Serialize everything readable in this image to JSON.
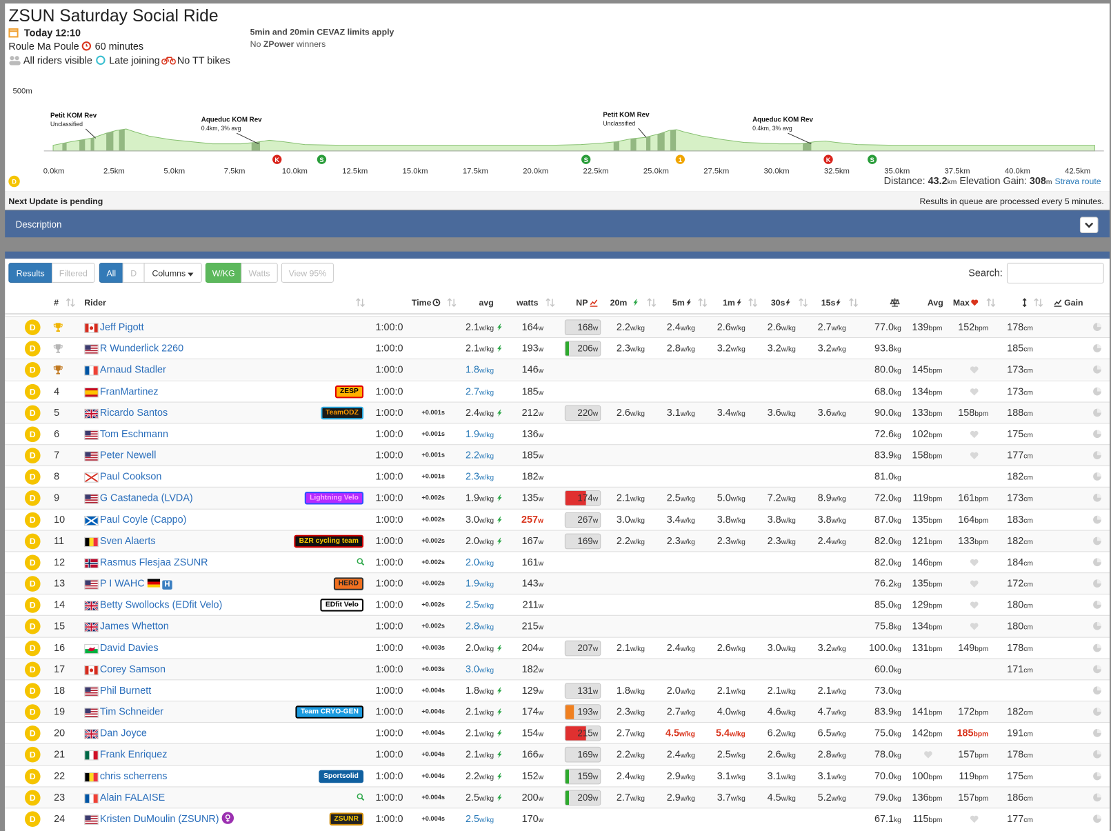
{
  "header": {
    "title": "ZSUN Saturday Social Ride",
    "date": "Today 12:10",
    "route": "Roule Ma Poule",
    "duration": "60 minutes",
    "visibility": "All riders visible",
    "late_join": "Late joining",
    "bikes": "No TT bikes",
    "note": "5min and 20min CEVAZ limits apply",
    "zpower": {
      "pre": "No ",
      "strong": "ZPower",
      "post": " winners"
    }
  },
  "profile": {
    "y_label": "500m",
    "segments": [
      {
        "name": "Petit KOM Rev",
        "detail": "Unclassified"
      },
      {
        "name": "Aqueduc KOM Rev",
        "detail": "0.4km, 3% avg"
      },
      {
        "name": "Petit KOM Rev",
        "detail": "Unclassified"
      },
      {
        "name": "Aqueduc KOM Rev",
        "detail": "0.4km, 3% avg"
      }
    ],
    "x_labels": [
      "0.0km",
      "2.5km",
      "5.0km",
      "7.5km",
      "10.0km",
      "12.5km",
      "15.0km",
      "17.5km",
      "20.0km",
      "22.5km",
      "25.0km",
      "27.5km",
      "30.0km",
      "32.5km",
      "35.0km",
      "37.5km",
      "40.0km",
      "42.5km"
    ],
    "markers": [
      {
        "text": "K",
        "color": "#d9241c"
      },
      {
        "text": "S",
        "color": "#2a9d3a"
      },
      {
        "text": "S",
        "color": "#2a9d3a"
      },
      {
        "text": "1",
        "color": "#f0a500"
      },
      {
        "text": "K",
        "color": "#d9241c"
      },
      {
        "text": "S",
        "color": "#2a9d3a"
      }
    ],
    "category": "D"
  },
  "distance": {
    "label": "Distance:",
    "value": "43.2",
    "unit": "km",
    "gain_label": "Elevation Gain:",
    "gain_value": "308",
    "gain_unit": "m",
    "link": "Strava route"
  },
  "status": {
    "left": "Next Update is pending",
    "right": "Results in queue are processed every 5 minutes."
  },
  "description": "Description",
  "toolbar": {
    "results": "Results",
    "filtered": "Filtered",
    "all": "All",
    "cat": "D",
    "columns": "Columns",
    "wkg": "W/KG",
    "watts": "Watts",
    "view": "View 95%",
    "search": "Search:"
  },
  "table": {
    "columns": {
      "pos": "#",
      "rider": "Rider",
      "time": "Time",
      "avg": "avg",
      "watts": "watts",
      "np": "NP",
      "w20": "20m",
      "w5": "5m",
      "w1": "1m",
      "w30": "30s",
      "w15": "15s",
      "hr_avg": "Avg",
      "hr_max": "Max",
      "gain": "Gain"
    },
    "units": {
      "wkg": "w/kg",
      "w": "w",
      "kg": "kg",
      "bpm": "bpm",
      "cm": "cm"
    },
    "rows": [
      {
        "cat": "D",
        "trophy": "#f0b400",
        "flag": "CA",
        "rider": "Jeff Pigott",
        "time": "1:00:0",
        "avg": "2.1",
        "pb": true,
        "watts": "164",
        "np": "168",
        "w20": "2.2",
        "w5": "2.4",
        "w1": "2.6",
        "w30": "2.6",
        "w15": "2.7",
        "weight": "77.0",
        "hr_avg": "139",
        "hr_max": "152",
        "height": "178"
      },
      {
        "cat": "D",
        "trophy": "#b5b5b5",
        "flag": "US",
        "rider": "R Wunderlick 2260",
        "time": "1:00:0",
        "avg": "2.1",
        "pb": true,
        "watts": "193",
        "np": "206",
        "np_bar": [
          "#2eaa2e",
          0.1
        ],
        "w20": "2.3",
        "w5": "2.8",
        "w1": "3.2",
        "w30": "3.2",
        "w15": "3.2",
        "weight": "93.8",
        "height": "185"
      },
      {
        "cat": "D",
        "trophy": "#c07820",
        "flag": "FR",
        "rider": "Arnaud Stadler",
        "time": "1:00:0",
        "avg": "1.8",
        "watts": "146",
        "weight": "80.0",
        "hr_avg": "145",
        "heart": [
          "hr_max"
        ],
        "height": "173"
      },
      {
        "cat": "D",
        "pos": 4,
        "flag": "ES",
        "rider": "FranMartinez",
        "team": {
          "text": "ZESP",
          "bg": "#ffb000",
          "fg": "#000",
          "border": "#e00000"
        },
        "time": "1:00:0",
        "avg": "2.7",
        "watts": "185",
        "weight": "68.0",
        "hr_avg": "134",
        "heart": [
          "hr_max"
        ],
        "height": "173"
      },
      {
        "cat": "D",
        "pos": 5,
        "flag": "GB",
        "rider": "Ricardo Santos",
        "team": {
          "text": "TeamODZ",
          "bg": "#1a1a1a",
          "fg": "#ff9900",
          "border": "#29a8e0"
        },
        "time": "1:00:0",
        "gap": "+0.001s",
        "avg": "2.4",
        "pb": true,
        "watts": "212",
        "np": "220",
        "w20": "2.6",
        "w5": "3.1",
        "w1": "3.4",
        "w30": "3.6",
        "w15": "3.6",
        "weight": "90.0",
        "hr_avg": "133",
        "hr_max": "158",
        "height": "188"
      },
      {
        "cat": "D",
        "pos": 6,
        "flag": "US",
        "rider": "Tom Eschmann",
        "time": "1:00:0",
        "gap": "+0.001s",
        "avg": "1.9",
        "watts": "136",
        "weight": "72.6",
        "hr_avg": "102",
        "heart": [
          "hr_max"
        ],
        "height": "175"
      },
      {
        "cat": "D",
        "pos": 7,
        "flag": "US",
        "rider": "Peter Newell",
        "time": "1:00:0",
        "gap": "+0.001s",
        "avg": "2.2",
        "watts": "185",
        "weight": "83.9",
        "hr_avg": "158",
        "heart": [
          "hr_max"
        ],
        "height": "177"
      },
      {
        "cat": "D",
        "pos": 8,
        "flag": "JE",
        "rider": "Paul Cookson",
        "time": "1:00:0",
        "gap": "+0.001s",
        "avg": "2.3",
        "watts": "182",
        "weight": "81.0",
        "height": "182"
      },
      {
        "cat": "D",
        "pos": 9,
        "flag": "US",
        "rider": "G Castaneda (LVDA)",
        "team": {
          "text": "Lightning Velo",
          "bg": "#b52cff",
          "fg": "#ffb3ff",
          "border": "#3050ff"
        },
        "time": "1:00:0",
        "gap": "+0.002s",
        "avg": "1.9",
        "pb": true,
        "watts": "135",
        "np": "174",
        "np_bar": [
          "#e03030",
          0.6
        ],
        "w20": "2.1",
        "w5": "2.5",
        "w1": "5.0",
        "w30": "7.2",
        "w15": "8.9",
        "weight": "72.0",
        "hr_avg": "119",
        "hr_max": "161",
        "height": "173"
      },
      {
        "cat": "D",
        "pos": 10,
        "flag": "SCT",
        "rider": "Paul Coyle (Cappo)",
        "time": "1:00:0",
        "gap": "+0.002s",
        "avg": "3.0",
        "pb": true,
        "watts": "257",
        "hot": [
          "watts"
        ],
        "np": "267",
        "w20": "3.0",
        "w5": "3.4",
        "w1": "3.8",
        "w30": "3.8",
        "w15": "3.8",
        "weight": "87.0",
        "hr_avg": "135",
        "hr_max": "164",
        "height": "183"
      },
      {
        "cat": "D",
        "pos": 11,
        "flag": "BE",
        "rider": "Sven Alaerts",
        "team": {
          "text": "BZR cycling team",
          "bg": "#111111",
          "fg": "#ffcc00",
          "border": "#cc0000"
        },
        "time": "1:00:0",
        "gap": "+0.002s",
        "avg": "2.0",
        "pb": true,
        "watts": "167",
        "np": "169",
        "w20": "2.2",
        "w5": "2.3",
        "w1": "2.3",
        "w30": "2.3",
        "w15": "2.4",
        "weight": "82.0",
        "hr_avg": "121",
        "hr_max": "133",
        "height": "182"
      },
      {
        "cat": "D",
        "pos": 12,
        "flag": "NO",
        "rider": "Rasmus Flesjaa ZSUNR",
        "search_icon": true,
        "time": "1:00:0",
        "gap": "+0.002s",
        "avg": "2.0",
        "watts": "161",
        "weight": "82.0",
        "hr_avg": "146",
        "heart": [
          "hr_max"
        ],
        "height": "184"
      },
      {
        "cat": "D",
        "pos": 13,
        "flag": "US",
        "rider": "P I WAHC",
        "flag2": "DE",
        "tag": "H",
        "team": {
          "text": "HERD",
          "bg": "#f07020",
          "fg": "#222222",
          "border": "#333333"
        },
        "time": "1:00:0",
        "gap": "+0.002s",
        "avg": "1.9",
        "watts": "143",
        "weight": "76.2",
        "hr_avg": "135",
        "heart": [
          "hr_max"
        ],
        "height": "172"
      },
      {
        "cat": "D",
        "pos": 14,
        "flag": "GB",
        "rider": "Betty Swollocks (EDfit Velo)",
        "team": {
          "text": "EDfit Velo",
          "bg": "#ffffff",
          "fg": "#000000",
          "border": "#000000"
        },
        "time": "1:00:0",
        "gap": "+0.002s",
        "avg": "2.5",
        "watts": "211",
        "weight": "85.0",
        "hr_avg": "129",
        "heart": [
          "hr_max"
        ],
        "height": "180"
      },
      {
        "cat": "D",
        "pos": 15,
        "flag": "GB",
        "rider": "James Whetton",
        "time": "1:00:0",
        "gap": "+0.002s",
        "avg": "2.8",
        "watts": "215",
        "weight": "75.8",
        "hr_avg": "134",
        "heart": [
          "hr_max"
        ],
        "height": "180"
      },
      {
        "cat": "D",
        "pos": 16,
        "flag": "WLS",
        "rider": "David Davies",
        "time": "1:00:0",
        "gap": "+0.003s",
        "avg": "2.0",
        "pb": true,
        "watts": "204",
        "np": "207",
        "w20": "2.1",
        "w5": "2.4",
        "w1": "2.6",
        "w30": "3.0",
        "w15": "3.2",
        "weight": "100.0",
        "hr_avg": "131",
        "hr_max": "149",
        "height": "178"
      },
      {
        "cat": "D",
        "pos": 17,
        "flag": "CA",
        "rider": "Corey Samson",
        "time": "1:00:0",
        "gap": "+0.003s",
        "avg": "3.0",
        "watts": "182",
        "weight": "60.0",
        "height": "171"
      },
      {
        "cat": "D",
        "pos": 18,
        "flag": "US",
        "rider": "Phil Burnett",
        "time": "1:00:0",
        "gap": "+0.004s",
        "avg": "1.8",
        "pb": true,
        "watts": "129",
        "np": "131",
        "w20": "1.8",
        "w5": "2.0",
        "w1": "2.1",
        "w30": "2.1",
        "w15": "2.1",
        "weight": "73.0"
      },
      {
        "cat": "D",
        "pos": 19,
        "flag": "US",
        "rider": "Tim Schneider",
        "team": {
          "text": "Team CRYO-GEN",
          "bg": "#1a9be0",
          "fg": "#ffffff",
          "border": "#000000"
        },
        "time": "1:00:0",
        "gap": "+0.004s",
        "avg": "2.1",
        "pb": true,
        "watts": "174",
        "np": "193",
        "np_bar": [
          "#f08020",
          0.25
        ],
        "w20": "2.3",
        "w5": "2.7",
        "w1": "4.0",
        "w30": "4.6",
        "w15": "4.7",
        "weight": "83.9",
        "hr_avg": "141",
        "hr_max": "172",
        "height": "182"
      },
      {
        "cat": "D",
        "pos": 20,
        "flag": "GB",
        "rider": "Dan Joyce",
        "time": "1:00:0",
        "gap": "+0.004s",
        "avg": "2.1",
        "pb": true,
        "watts": "154",
        "np": "215",
        "np_bar": [
          "#e03030",
          0.6
        ],
        "w20": "2.7",
        "w5": "4.5",
        "w1": "5.4",
        "w30": "6.2",
        "w15": "6.5",
        "hot": [
          "w5",
          "w1",
          "hr_max"
        ],
        "weight": "75.0",
        "hr_avg": "142",
        "hr_max": "185",
        "height": "191"
      },
      {
        "cat": "D",
        "pos": 21,
        "flag": "MX",
        "rider": "Frank Enriquez",
        "time": "1:00:0",
        "gap": "+0.004s",
        "avg": "2.1",
        "pb": true,
        "watts": "166",
        "np": "169",
        "w20": "2.2",
        "w5": "2.4",
        "w1": "2.5",
        "w30": "2.6",
        "w15": "2.8",
        "weight": "78.0",
        "heart": [
          "hr_avg"
        ],
        "hr_max": "157",
        "height": "178"
      },
      {
        "cat": "D",
        "pos": 22,
        "flag": "BE",
        "rider": "chris scherrens",
        "team": {
          "text": "Sportsolid",
          "bg": "#1060a0",
          "fg": "#ffffff",
          "border": "#1060a0"
        },
        "time": "1:00:0",
        "gap": "+0.004s",
        "avg": "2.2",
        "pb": true,
        "watts": "152",
        "np": "159",
        "np_bar": [
          "#2eaa2e",
          0.1
        ],
        "w20": "2.4",
        "w5": "2.9",
        "w1": "3.1",
        "w30": "3.1",
        "w15": "3.1",
        "weight": "70.0",
        "hr_avg": "100",
        "hr_max": "119",
        "height": "175"
      },
      {
        "cat": "D",
        "pos": 23,
        "flag": "FR",
        "rider": "Alain FALAISE",
        "search_icon": true,
        "time": "1:00:0",
        "gap": "+0.004s",
        "avg": "2.5",
        "pb": true,
        "watts": "200",
        "np": "209",
        "np_bar": [
          "#2eaa2e",
          0.1
        ],
        "w20": "2.7",
        "w5": "2.9",
        "w1": "3.7",
        "w30": "4.5",
        "w15": "5.2",
        "weight": "79.0",
        "hr_avg": "136",
        "hr_max": "157",
        "height": "186"
      },
      {
        "cat": "D",
        "pos": 24,
        "flag": "US",
        "rider": "Kristen DuMoulin (ZSUNR)",
        "female": true,
        "team": {
          "text": "ZSUNR",
          "bg": "#222222",
          "fg": "#f5c400",
          "border": "#cc8800"
        },
        "time": "1:00:0",
        "gap": "+0.004s",
        "avg": "2.5",
        "watts": "170",
        "weight": "67.1",
        "hr_avg": "115",
        "heart": [
          "hr_max"
        ],
        "height": "177"
      }
    ]
  }
}
